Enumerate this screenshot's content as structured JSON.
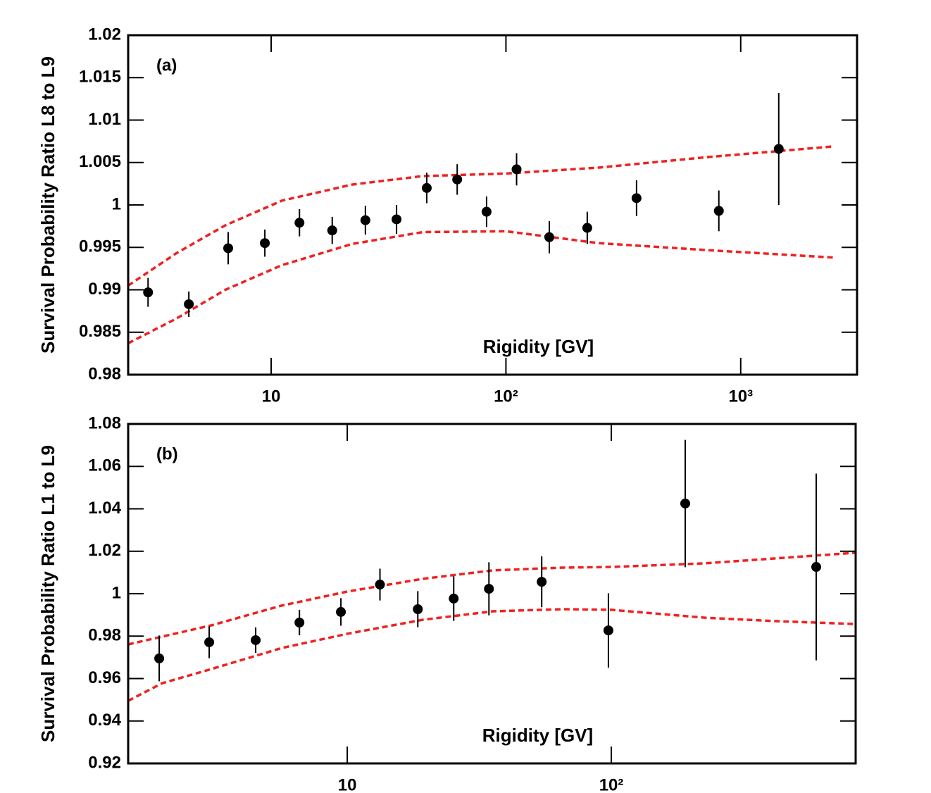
{
  "chart_data": [
    {
      "type": "scatter",
      "panel_label": "(a)",
      "xlabel": "Rigidity [GV]",
      "ylabel": "Survival Probability Ratio L8 to L9",
      "x_log": true,
      "xlim": [
        2.46,
        3130
      ],
      "xticks": [
        10,
        {
          "value": 100,
          "label": "10²"
        },
        {
          "value": 1000,
          "label": "10³"
        }
      ],
      "ylim": [
        0.98,
        1.02
      ],
      "yticks": [
        0.98,
        0.985,
        0.99,
        0.995,
        1,
        1.005,
        1.01,
        1.015,
        1.02
      ],
      "series": [
        {
          "color": "#000000",
          "x": [
            2.99,
            4.46,
            6.56,
            9.4,
            13.2,
            18.2,
            25.2,
            34.2,
            46,
            62,
            82.7,
            111,
            153,
            222,
            360,
            807,
            1452
          ],
          "values": [
            0.9897,
            0.9883,
            0.9949,
            0.9955,
            0.9979,
            0.997,
            0.9982,
            0.9983,
            1.002,
            1.003,
            0.9992,
            1.0042,
            0.9962,
            0.9973,
            1.0008,
            0.9993,
            1.0066
          ],
          "errors": [
            0.0017,
            0.0015,
            0.0019,
            0.0016,
            0.0016,
            0.0016,
            0.0017,
            0.0017,
            0.0018,
            0.0018,
            0.0018,
            0.0019,
            0.0019,
            0.0019,
            0.0021,
            0.0024,
            0.0066
          ]
        }
      ],
      "curves": [
        {
          "color": "#ee2222",
          "dashed": true,
          "x": [
            2.46,
            3.94,
            6.38,
            11.1,
            22.1,
            44.2,
            100,
            248,
            698,
            2490
          ],
          "values": [
            0.9905,
            0.9943,
            0.9976,
            1.0005,
            1.0024,
            1.0034,
            1.0037,
            1.0044,
            1.0056,
            1.0069
          ]
        },
        {
          "color": "#ee2222",
          "dashed": true,
          "x": [
            2.46,
            3.94,
            6.38,
            11.1,
            22.1,
            44.2,
            100,
            248,
            698,
            2490
          ],
          "values": [
            0.9837,
            0.9866,
            0.99,
            0.9929,
            0.9954,
            0.9968,
            0.9969,
            0.9955,
            0.9947,
            0.9938
          ]
        }
      ]
    },
    {
      "type": "scatter",
      "panel_label": "(b)",
      "xlabel": "Rigidity [GV]",
      "ylabel": "Survival Probability Ratio L1 to L9",
      "x_log": true,
      "xlim": [
        1.48,
        842
      ],
      "xticks": [
        10,
        {
          "value": 100,
          "label": "10²"
        }
      ],
      "ylim": [
        0.92,
        1.08
      ],
      "yticks": [
        0.92,
        0.94,
        0.96,
        0.98,
        1,
        1.02,
        1.04,
        1.06,
        1.08
      ],
      "series": [
        {
          "color": "#000000",
          "x": [
            1.94,
            3.0,
            4.5,
            6.59,
            9.46,
            13.3,
            18.5,
            25.3,
            34.4,
            54.5,
            97.5,
            190.5,
            597
          ],
          "values": [
            0.9695,
            0.9771,
            0.9781,
            0.9864,
            0.9914,
            1.0043,
            0.9927,
            0.9977,
            1.0023,
            1.0056,
            0.9827,
            1.0425,
            1.0126
          ],
          "errors": [
            0.0108,
            0.0075,
            0.006,
            0.006,
            0.0065,
            0.0075,
            0.0085,
            0.0105,
            0.0125,
            0.012,
            0.0175,
            0.03,
            0.044
          ]
        }
      ],
      "curves": [
        {
          "color": "#ee2222",
          "dashed": true,
          "x": [
            1.48,
            3.06,
            5.65,
            10,
            19.3,
            35.6,
            65.8,
            100,
            225,
            414,
            842
          ],
          "values": [
            0.9761,
            0.9851,
            0.9944,
            1.001,
            1.007,
            1.011,
            1.0123,
            1.0126,
            1.0143,
            1.0166,
            1.0193
          ]
        },
        {
          "color": "#ee2222",
          "dashed": true,
          "x": [
            1.48,
            1.99,
            3.06,
            5.65,
            10,
            19.3,
            35.6,
            65.8,
            100,
            225,
            414,
            842
          ],
          "values": [
            0.9495,
            0.9578,
            0.9645,
            0.9744,
            0.9811,
            0.9877,
            0.9917,
            0.9927,
            0.9924,
            0.9887,
            0.9871,
            0.9857
          ]
        }
      ]
    }
  ]
}
